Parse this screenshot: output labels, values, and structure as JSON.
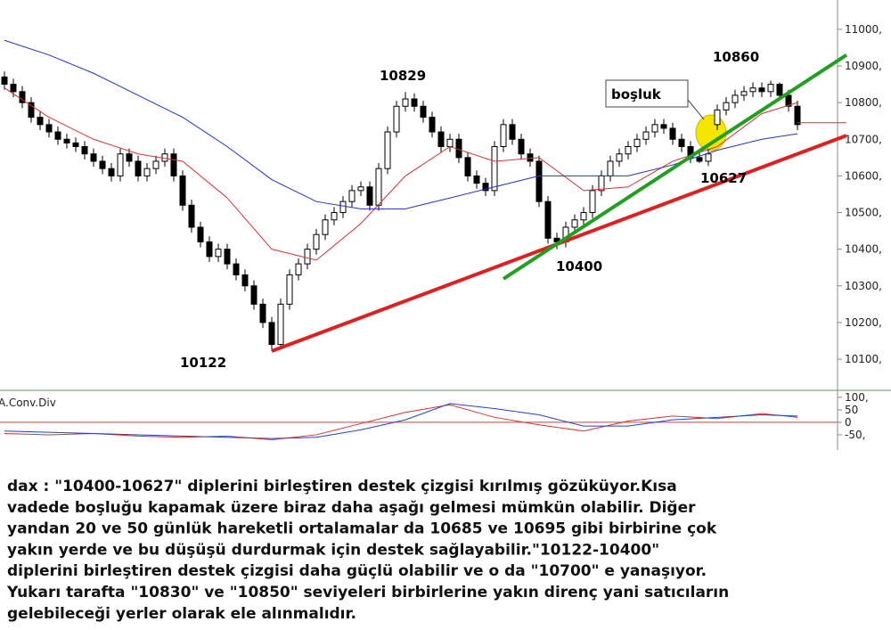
{
  "chart_data": [
    {
      "type": "candlestick",
      "ylim": [
        10015,
        11080
      ],
      "yticks": [
        {
          "value": 10100,
          "label": "10100,"
        },
        {
          "value": 10200,
          "label": "10200,"
        },
        {
          "value": 10300,
          "label": "10300,"
        },
        {
          "value": 10400,
          "label": "10400,"
        },
        {
          "value": 10500,
          "label": "10500,"
        },
        {
          "value": 10600,
          "label": "10600,"
        },
        {
          "value": 10700,
          "label": "10700,"
        },
        {
          "value": 10800,
          "label": "10800,"
        },
        {
          "value": 10900,
          "label": "10900,"
        },
        {
          "value": 11000,
          "label": "11000,"
        }
      ],
      "open": [
        10870,
        10850,
        10830,
        10800,
        10760,
        10740,
        10720,
        10700,
        10690,
        10680,
        10660,
        10640,
        10620,
        10600,
        10660,
        10640,
        10600,
        10620,
        10640,
        10660,
        10600,
        10520,
        10460,
        10420,
        10380,
        10400,
        10360,
        10330,
        10300,
        10250,
        10200,
        10140,
        10250,
        10330,
        10360,
        10400,
        10440,
        10480,
        10500,
        10530,
        10560,
        10570,
        10520,
        10620,
        10720,
        10790,
        10810,
        10790,
        10760,
        10720,
        10680,
        10700,
        10650,
        10600,
        10580,
        10560,
        10680,
        10740,
        10700,
        10660,
        10640,
        10530,
        10430,
        10420,
        10460,
        10480,
        10500,
        10560,
        10600,
        10640,
        10660,
        10680,
        10700,
        10720,
        10740,
        10730,
        10700,
        10680,
        10650,
        10640,
        10740,
        10780,
        10800,
        10820,
        10830,
        10840,
        10830,
        10850,
        10820,
        10790
      ],
      "high": [
        10885,
        10865,
        10845,
        10815,
        10775,
        10755,
        10735,
        10715,
        10705,
        10695,
        10675,
        10655,
        10635,
        10675,
        10675,
        10655,
        10635,
        10655,
        10675,
        10675,
        10615,
        10535,
        10475,
        10435,
        10415,
        10415,
        10375,
        10345,
        10315,
        10265,
        10215,
        10265,
        10345,
        10375,
        10415,
        10455,
        10495,
        10515,
        10545,
        10575,
        10585,
        10585,
        10635,
        10735,
        10805,
        10829,
        10825,
        10805,
        10775,
        10735,
        10715,
        10715,
        10665,
        10615,
        10595,
        10695,
        10755,
        10755,
        10715,
        10675,
        10655,
        10545,
        10445,
        10475,
        10495,
        10515,
        10575,
        10615,
        10655,
        10675,
        10695,
        10715,
        10735,
        10755,
        10755,
        10745,
        10715,
        10695,
        10665,
        10675,
        10795,
        10815,
        10835,
        10845,
        10855,
        10855,
        10860,
        10855,
        10835,
        10805
      ],
      "low": [
        10835,
        10815,
        10785,
        10745,
        10725,
        10705,
        10685,
        10675,
        10665,
        10645,
        10625,
        10605,
        10585,
        10585,
        10625,
        10585,
        10585,
        10605,
        10625,
        10585,
        10505,
        10445,
        10405,
        10365,
        10365,
        10345,
        10315,
        10285,
        10235,
        10185,
        10122,
        10125,
        10235,
        10315,
        10345,
        10385,
        10425,
        10465,
        10485,
        10515,
        10545,
        10505,
        10505,
        10605,
        10705,
        10775,
        10775,
        10745,
        10705,
        10665,
        10665,
        10635,
        10585,
        10565,
        10545,
        10545,
        10665,
        10685,
        10645,
        10625,
        10515,
        10415,
        10400,
        10405,
        10445,
        10465,
        10485,
        10545,
        10585,
        10625,
        10645,
        10665,
        10685,
        10705,
        10715,
        10685,
        10665,
        10635,
        10635,
        10627,
        10725,
        10765,
        10785,
        10805,
        10815,
        10815,
        10815,
        10805,
        10775,
        10725
      ],
      "close": [
        10850,
        10830,
        10800,
        10760,
        10740,
        10720,
        10700,
        10690,
        10680,
        10660,
        10640,
        10620,
        10600,
        10660,
        10640,
        10600,
        10620,
        10640,
        10660,
        10600,
        10520,
        10460,
        10420,
        10380,
        10400,
        10360,
        10330,
        10300,
        10250,
        10200,
        10140,
        10250,
        10330,
        10360,
        10400,
        10440,
        10480,
        10500,
        10530,
        10560,
        10570,
        10520,
        10620,
        10720,
        10790,
        10810,
        10790,
        10760,
        10720,
        10680,
        10700,
        10650,
        10600,
        10580,
        10560,
        10680,
        10740,
        10700,
        10660,
        10640,
        10530,
        10430,
        10420,
        10460,
        10480,
        10500,
        10560,
        10600,
        10640,
        10660,
        10680,
        10700,
        10720,
        10740,
        10730,
        10700,
        10680,
        10650,
        10640,
        10660,
        10780,
        10800,
        10820,
        10830,
        10840,
        10830,
        10850,
        10820,
        10790,
        10740
      ],
      "lines": [
        {
          "color": "#e03030",
          "x": [
            0,
            5,
            10,
            15,
            20,
            25,
            30,
            35,
            40,
            45,
            50,
            55,
            60,
            65,
            70,
            75,
            80,
            85,
            89
          ],
          "values": [
            10840,
            10760,
            10700,
            10660,
            10640,
            10540,
            10400,
            10370,
            10470,
            10600,
            10680,
            10640,
            10650,
            10560,
            10570,
            10640,
            10680,
            10770,
            10800
          ]
        },
        {
          "color": "#2030e0",
          "x": [
            0,
            5,
            10,
            15,
            20,
            25,
            30,
            35,
            40,
            45,
            50,
            55,
            60,
            65,
            70,
            75,
            80,
            85,
            89
          ],
          "values": [
            10970,
            10930,
            10880,
            10820,
            10760,
            10680,
            10590,
            10530,
            10510,
            10510,
            10540,
            10570,
            10600,
            10600,
            10600,
            10630,
            10670,
            10700,
            10715
          ]
        },
        {
          "color": "#e02020",
          "width": 4,
          "x": [
            30,
            94.5
          ],
          "values": [
            10122,
            10710
          ]
        },
        {
          "color": "#20a020",
          "width": 4,
          "x": [
            56,
            94.5
          ],
          "values": [
            10319,
            10930
          ]
        },
        {
          "color": "#e03030",
          "width": 1,
          "x": [
            89,
            94.5
          ],
          "values": [
            10745,
            10745
          ]
        }
      ],
      "annotations": [
        "10829",
        "10860",
        "boşluk",
        "10627",
        "10400",
        "10122"
      ]
    },
    {
      "type": "line",
      "title": "A.Conv.Div",
      "ylim": [
        -93,
        121
      ],
      "yticks": [
        {
          "value": 100,
          "label": "100,"
        },
        50,
        0,
        {
          "value": -50,
          "label": "-50,"
        }
      ],
      "x": [
        0,
        5,
        10,
        15,
        20,
        25,
        30,
        35,
        40,
        45,
        50,
        55,
        60,
        65,
        70,
        75,
        80,
        85,
        89
      ],
      "series": [
        {
          "color": "#e03030",
          "values": [
            -45,
            -50,
            -45,
            -55,
            -60,
            -55,
            -70,
            -50,
            -5,
            40,
            70,
            20,
            -10,
            -35,
            5,
            25,
            15,
            35,
            20
          ]
        },
        {
          "color": "#2040e0",
          "values": [
            -35,
            -40,
            -45,
            -50,
            -55,
            -60,
            -65,
            -60,
            -30,
            10,
            75,
            55,
            30,
            -15,
            -15,
            10,
            20,
            30,
            25
          ]
        }
      ]
    }
  ],
  "description": [
    "dax : \"10400-10627\" diplerini birleştiren destek çizgisi kırılmış gözüküyor.Kısa",
    "vadede boşluğu kapamak üzere  biraz daha aşağı gelmesi mümkün olabilir. Diğer",
    "yandan 20 ve 50 günlük hareketli ortalamalar da 10685 ve 10695 gibi birbirine çok",
    "yakın yerde ve bu düşüşü durdurmak için destek sağlayabilir.\"10122-10400\"",
    "diplerini birleştiren destek çizgisi daha güçlü olabilir ve o da \"10700\" e yanaşıyor.",
    "Yukarı tarafta \"10830\" ve \"10850\" seviyeleri birbirlerine yakın direnç yani satıcıların",
    "gelebileceği yerler olarak ele alınmalıdır."
  ]
}
